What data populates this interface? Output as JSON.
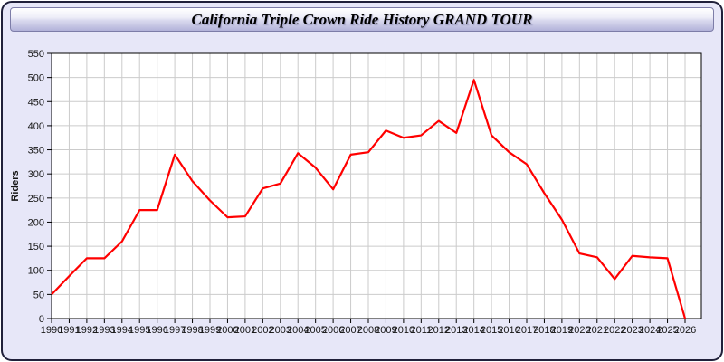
{
  "header": {
    "title": "California Triple Crown Ride History GRAND TOUR"
  },
  "chart_data": {
    "type": "line",
    "title": "California Triple Crown Ride History GRAND TOUR",
    "xlabel": "",
    "ylabel": "Riders",
    "ylim": [
      0,
      550
    ],
    "ytick_step": 50,
    "grid": true,
    "legend_position": "none",
    "plot_bg": "#ffffff",
    "grid_color": "#cbcbcb",
    "axis_color": "#000000",
    "x": [
      1990,
      1991,
      1992,
      1993,
      1994,
      1995,
      1996,
      1997,
      1998,
      1999,
      2000,
      2001,
      2002,
      2003,
      2004,
      2005,
      2006,
      2007,
      2008,
      2009,
      2010,
      2011,
      2012,
      2013,
      2014,
      2015,
      2016,
      2017,
      2018,
      2019,
      2020,
      2021,
      2022,
      2023,
      2024,
      2025,
      2026
    ],
    "series": [
      {
        "name": "Riders",
        "color": "#ff0000",
        "values": [
          50,
          88,
          125,
          125,
          160,
          225,
          225,
          340,
          285,
          245,
          210,
          212,
          270,
          280,
          343,
          313,
          268,
          340,
          345,
          390,
          375,
          380,
          410,
          385,
          495,
          380,
          345,
          320,
          260,
          205,
          135,
          127,
          82,
          130,
          127,
          125,
          0
        ]
      }
    ]
  }
}
